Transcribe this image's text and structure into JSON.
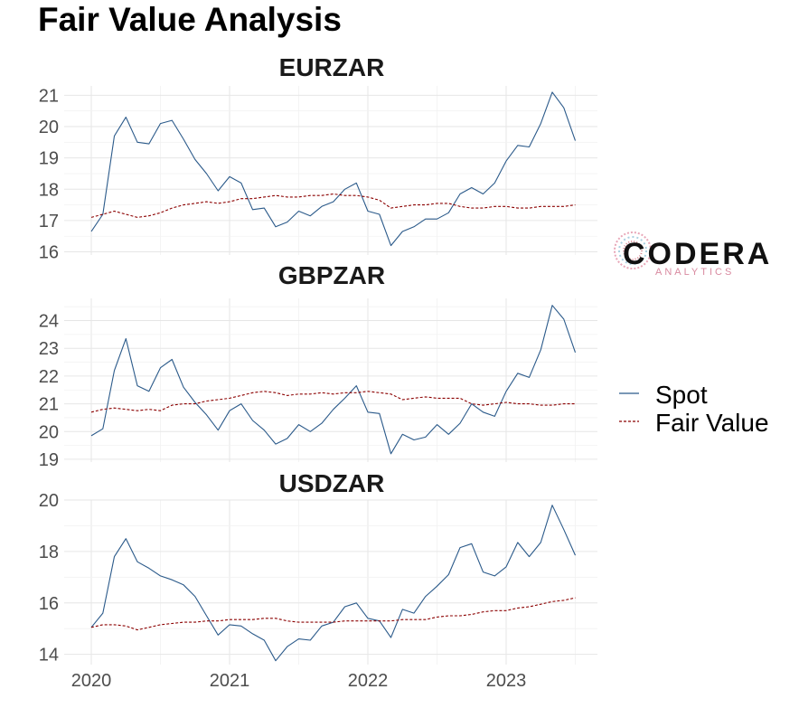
{
  "title": "Fair Value Analysis",
  "legend": {
    "items": [
      {
        "label": "Spot",
        "color": "#2b5a8a",
        "dash": "solid"
      },
      {
        "label": "Fair Value",
        "color": "#8b0000",
        "dash": "dashed"
      }
    ]
  },
  "logo": {
    "main": "CODERA",
    "sub": "ANALYTICS"
  },
  "x_ticks": [
    "2020",
    "2021",
    "2022",
    "2023"
  ],
  "chart_data": [
    {
      "type": "line",
      "title": "EURZAR",
      "x_start": "2020-01",
      "x_step": "month",
      "ylim": [
        15.9,
        21.3
      ],
      "y_ticks": [
        16,
        17,
        18,
        19,
        20,
        21
      ],
      "series": [
        {
          "name": "Spot",
          "values": [
            16.65,
            17.2,
            19.7,
            20.3,
            19.5,
            19.45,
            20.1,
            20.2,
            19.6,
            18.95,
            18.5,
            17.95,
            18.4,
            18.2,
            17.35,
            17.4,
            16.8,
            16.95,
            17.3,
            17.15,
            17.45,
            17.6,
            18.0,
            18.2,
            17.3,
            17.2,
            16.2,
            16.65,
            16.8,
            17.05,
            17.05,
            17.25,
            17.85,
            18.05,
            17.85,
            18.2,
            18.9,
            19.4,
            19.35,
            20.1,
            21.1,
            20.6,
            19.55
          ]
        },
        {
          "name": "Fair Value",
          "values": [
            17.1,
            17.2,
            17.3,
            17.2,
            17.1,
            17.15,
            17.25,
            17.4,
            17.5,
            17.55,
            17.6,
            17.55,
            17.6,
            17.7,
            17.7,
            17.75,
            17.8,
            17.75,
            17.75,
            17.8,
            17.8,
            17.85,
            17.8,
            17.8,
            17.75,
            17.65,
            17.4,
            17.45,
            17.5,
            17.5,
            17.55,
            17.55,
            17.45,
            17.4,
            17.4,
            17.45,
            17.45,
            17.4,
            17.4,
            17.45,
            17.45,
            17.45,
            17.5
          ]
        }
      ]
    },
    {
      "type": "line",
      "title": "GBPZAR",
      "x_start": "2020-01",
      "x_step": "month",
      "ylim": [
        18.9,
        24.8
      ],
      "y_ticks": [
        19,
        20,
        21,
        22,
        23,
        24
      ],
      "series": [
        {
          "name": "Spot",
          "values": [
            19.85,
            20.1,
            22.2,
            23.35,
            21.65,
            21.45,
            22.3,
            22.6,
            21.6,
            21.05,
            20.6,
            20.05,
            20.75,
            21.0,
            20.4,
            20.05,
            19.55,
            19.75,
            20.25,
            20.0,
            20.3,
            20.8,
            21.2,
            21.65,
            20.7,
            20.65,
            19.2,
            19.9,
            19.7,
            19.8,
            20.25,
            19.9,
            20.3,
            21.0,
            20.7,
            20.55,
            21.45,
            22.1,
            21.95,
            22.95,
            24.55,
            24.05,
            22.85
          ]
        },
        {
          "name": "Fair Value",
          "values": [
            20.7,
            20.8,
            20.85,
            20.8,
            20.75,
            20.8,
            20.75,
            20.95,
            21.0,
            21.0,
            21.1,
            21.15,
            21.2,
            21.3,
            21.4,
            21.45,
            21.4,
            21.3,
            21.35,
            21.35,
            21.4,
            21.35,
            21.4,
            21.4,
            21.45,
            21.4,
            21.35,
            21.15,
            21.2,
            21.25,
            21.2,
            21.2,
            21.2,
            21.0,
            20.95,
            21.0,
            21.05,
            21.0,
            21.0,
            20.95,
            20.95,
            21.0,
            21.0
          ]
        }
      ]
    },
    {
      "type": "line",
      "title": "USDZAR",
      "x_start": "2020-01",
      "x_step": "month",
      "ylim": [
        13.6,
        20.0
      ],
      "y_ticks": [
        14,
        16,
        18,
        20
      ],
      "series": [
        {
          "name": "Spot",
          "values": [
            15.05,
            15.6,
            17.8,
            18.5,
            17.6,
            17.35,
            17.05,
            16.9,
            16.7,
            16.25,
            15.5,
            14.75,
            15.15,
            15.1,
            14.8,
            14.55,
            13.75,
            14.3,
            14.6,
            14.55,
            15.1,
            15.25,
            15.85,
            16.0,
            15.4,
            15.3,
            14.65,
            15.75,
            15.6,
            16.25,
            16.65,
            17.1,
            18.15,
            18.3,
            17.2,
            17.05,
            17.4,
            18.35,
            17.8,
            18.35,
            19.8,
            18.85,
            17.85
          ]
        },
        {
          "name": "Fair Value",
          "values": [
            15.05,
            15.15,
            15.15,
            15.1,
            14.95,
            15.05,
            15.15,
            15.2,
            15.25,
            15.25,
            15.3,
            15.3,
            15.35,
            15.35,
            15.35,
            15.4,
            15.4,
            15.3,
            15.25,
            15.25,
            15.25,
            15.25,
            15.3,
            15.3,
            15.3,
            15.3,
            15.3,
            15.35,
            15.35,
            15.35,
            15.45,
            15.5,
            15.5,
            15.55,
            15.65,
            15.7,
            15.7,
            15.8,
            15.85,
            15.95,
            16.05,
            16.1,
            16.2
          ]
        }
      ]
    }
  ]
}
